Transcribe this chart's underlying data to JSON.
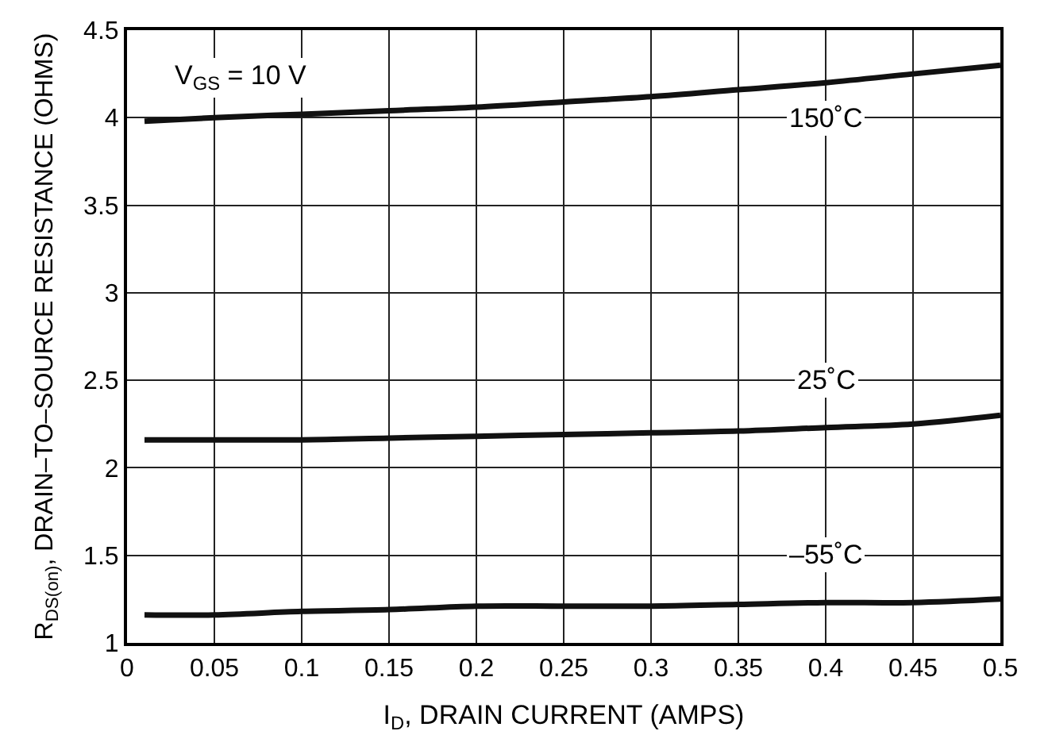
{
  "chart_data": {
    "type": "line",
    "xlabel": "I$_{D}$, DRAIN CURRENT (AMPS)",
    "ylabel": "R$_{DS(on)}$, DRAIN–TO–SOURCE RESISTANCE (OHMS)",
    "annotations": [
      "V$_{GS}$ = 10 V"
    ],
    "series": [
      {
        "name": "150˚C",
        "color": "#111111",
        "x": [
          0.01,
          0.05,
          0.1,
          0.15,
          0.2,
          0.25,
          0.3,
          0.35,
          0.4,
          0.45,
          0.5
        ],
        "values": [
          3.98,
          4.0,
          4.02,
          4.04,
          4.06,
          4.09,
          4.12,
          4.16,
          4.2,
          4.25,
          4.3
        ]
      },
      {
        "name": "25˚C",
        "color": "#111111",
        "x": [
          0.01,
          0.05,
          0.1,
          0.15,
          0.2,
          0.25,
          0.3,
          0.35,
          0.4,
          0.45,
          0.5
        ],
        "values": [
          2.16,
          2.16,
          2.16,
          2.17,
          2.18,
          2.19,
          2.2,
          2.21,
          2.23,
          2.25,
          2.3
        ]
      },
      {
        "name": "–55˚C",
        "color": "#111111",
        "x": [
          0.01,
          0.05,
          0.1,
          0.15,
          0.2,
          0.25,
          0.3,
          0.35,
          0.4,
          0.45,
          0.5
        ],
        "values": [
          1.16,
          1.16,
          1.18,
          1.19,
          1.21,
          1.21,
          1.21,
          1.22,
          1.23,
          1.23,
          1.25
        ]
      }
    ],
    "xlim": [
      0,
      0.5
    ],
    "xticks": [
      0,
      0.05,
      0.1,
      0.15,
      0.2,
      0.25,
      0.3,
      0.35,
      0.4,
      0.45,
      0.5
    ],
    "ylim": [
      1,
      4.5
    ],
    "yticks": [
      1,
      1.5,
      2,
      2.5,
      3,
      3.5,
      4,
      4.5
    ],
    "grid": true,
    "legend": false,
    "marker": "none",
    "line_style": "solid"
  }
}
